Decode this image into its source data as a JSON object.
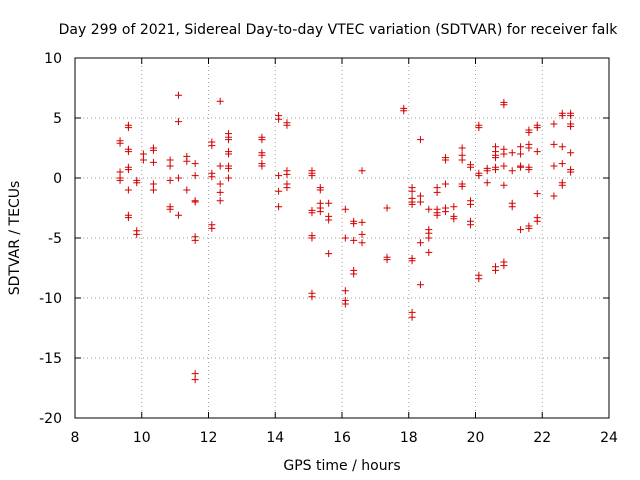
{
  "chart_data": {
    "type": "scatter",
    "title": "Day 299 of 2021, Sidereal Day-to-day VTEC variation (SDTVAR) for receiver falk",
    "xlabel": "GPS time / hours",
    "ylabel": "SDTVAR / TECUs",
    "xlim": [
      8,
      24
    ],
    "ylim": [
      -20,
      10
    ],
    "xticks": [
      "8",
      "10",
      "12",
      "14",
      "16",
      "18",
      "20",
      "22",
      "24"
    ],
    "yticks": [
      "-20",
      "-15",
      "-10",
      "-5",
      "0",
      "5",
      "10"
    ],
    "grid": true,
    "marker": "plus",
    "color": "#d40000",
    "series": [
      {
        "name": "SDTVAR",
        "points": [
          [
            9.35,
            3.1
          ],
          [
            9.35,
            2.9
          ],
          [
            9.35,
            0.5
          ],
          [
            9.35,
            0.0
          ],
          [
            9.35,
            -0.2
          ],
          [
            9.6,
            4.4
          ],
          [
            9.6,
            4.2
          ],
          [
            9.6,
            2.4
          ],
          [
            9.6,
            2.2
          ],
          [
            9.6,
            0.9
          ],
          [
            9.6,
            0.7
          ],
          [
            9.6,
            -1.0
          ],
          [
            9.6,
            -3.1
          ],
          [
            9.6,
            -3.3
          ],
          [
            9.85,
            -0.2
          ],
          [
            9.85,
            -0.4
          ],
          [
            9.85,
            -4.4
          ],
          [
            9.85,
            -4.7
          ],
          [
            10.05,
            2.0
          ],
          [
            10.05,
            1.5
          ],
          [
            10.35,
            2.5
          ],
          [
            10.35,
            2.3
          ],
          [
            10.35,
            1.3
          ],
          [
            10.35,
            -0.5
          ],
          [
            10.35,
            -1.0
          ],
          [
            10.85,
            1.5
          ],
          [
            10.85,
            1.0
          ],
          [
            10.85,
            -0.2
          ],
          [
            10.85,
            -2.4
          ],
          [
            10.85,
            -2.6
          ],
          [
            11.1,
            6.9
          ],
          [
            11.1,
            4.7
          ],
          [
            11.1,
            0.0
          ],
          [
            11.1,
            -3.1
          ],
          [
            11.35,
            1.8
          ],
          [
            11.35,
            1.4
          ],
          [
            11.35,
            -1.0
          ],
          [
            11.6,
            1.2
          ],
          [
            11.6,
            0.2
          ],
          [
            11.6,
            -1.9
          ],
          [
            11.6,
            -2.0
          ],
          [
            11.6,
            -4.9
          ],
          [
            11.6,
            -5.2
          ],
          [
            11.6,
            -16.3
          ],
          [
            11.6,
            -16.8
          ],
          [
            12.1,
            3.0
          ],
          [
            12.1,
            2.7
          ],
          [
            12.1,
            0.4
          ],
          [
            12.1,
            0.1
          ],
          [
            12.1,
            -3.9
          ],
          [
            12.1,
            -4.2
          ],
          [
            12.35,
            6.4
          ],
          [
            12.35,
            1.0
          ],
          [
            12.35,
            -0.5
          ],
          [
            12.35,
            -1.2
          ],
          [
            12.35,
            -1.9
          ],
          [
            12.6,
            3.7
          ],
          [
            12.6,
            3.4
          ],
          [
            12.6,
            3.2
          ],
          [
            12.6,
            2.2
          ],
          [
            12.6,
            2.0
          ],
          [
            12.6,
            1.0
          ],
          [
            12.6,
            0.8
          ],
          [
            12.6,
            0.0
          ],
          [
            13.6,
            3.4
          ],
          [
            13.6,
            3.2
          ],
          [
            13.6,
            2.1
          ],
          [
            13.6,
            1.9
          ],
          [
            13.6,
            1.2
          ],
          [
            13.6,
            1.0
          ],
          [
            14.1,
            5.2
          ],
          [
            14.1,
            4.9
          ],
          [
            14.1,
            0.2
          ],
          [
            14.1,
            -1.1
          ],
          [
            14.1,
            -2.4
          ],
          [
            14.35,
            4.6
          ],
          [
            14.35,
            4.4
          ],
          [
            14.35,
            0.6
          ],
          [
            14.35,
            0.3
          ],
          [
            14.35,
            -0.5
          ],
          [
            14.35,
            -0.8
          ],
          [
            15.1,
            0.6
          ],
          [
            15.1,
            0.4
          ],
          [
            15.1,
            0.2
          ],
          [
            15.1,
            -2.7
          ],
          [
            15.1,
            -2.9
          ],
          [
            15.1,
            -4.8
          ],
          [
            15.1,
            -5.0
          ],
          [
            15.1,
            -9.6
          ],
          [
            15.1,
            -9.9
          ],
          [
            15.35,
            -0.8
          ],
          [
            15.35,
            -1.0
          ],
          [
            15.35,
            -2.1
          ],
          [
            15.35,
            -2.5
          ],
          [
            15.35,
            -2.8
          ],
          [
            15.6,
            -2.1
          ],
          [
            15.6,
            -3.2
          ],
          [
            15.6,
            -3.5
          ],
          [
            15.6,
            -6.3
          ],
          [
            16.1,
            -2.6
          ],
          [
            16.1,
            -5.0
          ],
          [
            16.1,
            -9.4
          ],
          [
            16.1,
            -10.2
          ],
          [
            16.1,
            -10.5
          ],
          [
            16.35,
            -3.6
          ],
          [
            16.35,
            -3.8
          ],
          [
            16.35,
            -5.2
          ],
          [
            16.35,
            -7.7
          ],
          [
            16.35,
            -8.0
          ],
          [
            16.6,
            0.6
          ],
          [
            16.6,
            -3.7
          ],
          [
            16.6,
            -4.7
          ],
          [
            16.6,
            -5.4
          ],
          [
            17.35,
            -2.5
          ],
          [
            17.35,
            -6.6
          ],
          [
            17.35,
            -6.8
          ],
          [
            17.85,
            5.8
          ],
          [
            17.85,
            5.6
          ],
          [
            18.1,
            -0.8
          ],
          [
            18.1,
            -1.1
          ],
          [
            18.1,
            -1.7
          ],
          [
            18.1,
            -2.0
          ],
          [
            18.1,
            -2.2
          ],
          [
            18.1,
            -6.7
          ],
          [
            18.1,
            -6.9
          ],
          [
            18.1,
            -11.2
          ],
          [
            18.1,
            -11.6
          ],
          [
            18.35,
            3.2
          ],
          [
            18.35,
            -1.5
          ],
          [
            18.35,
            -2.0
          ],
          [
            18.35,
            -5.4
          ],
          [
            18.35,
            -8.9
          ],
          [
            18.6,
            -2.6
          ],
          [
            18.6,
            -4.3
          ],
          [
            18.6,
            -4.6
          ],
          [
            18.6,
            -5.0
          ],
          [
            18.6,
            -6.2
          ],
          [
            18.85,
            -0.8
          ],
          [
            18.85,
            -1.2
          ],
          [
            18.85,
            -2.6
          ],
          [
            18.85,
            -2.9
          ],
          [
            18.85,
            -3.1
          ],
          [
            19.1,
            1.7
          ],
          [
            19.1,
            1.5
          ],
          [
            19.1,
            -0.5
          ],
          [
            19.1,
            -2.5
          ],
          [
            19.1,
            -2.8
          ],
          [
            19.35,
            -2.4
          ],
          [
            19.35,
            -3.2
          ],
          [
            19.35,
            -3.4
          ],
          [
            19.6,
            2.5
          ],
          [
            19.6,
            1.9
          ],
          [
            19.6,
            1.5
          ],
          [
            19.6,
            -0.5
          ],
          [
            19.6,
            -0.7
          ],
          [
            19.85,
            1.1
          ],
          [
            19.85,
            0.9
          ],
          [
            19.85,
            -1.9
          ],
          [
            19.85,
            -2.2
          ],
          [
            19.85,
            -3.6
          ],
          [
            19.85,
            -3.9
          ],
          [
            20.1,
            4.4
          ],
          [
            20.1,
            4.2
          ],
          [
            20.1,
            0.4
          ],
          [
            20.1,
            0.2
          ],
          [
            20.1,
            -8.1
          ],
          [
            20.1,
            -8.4
          ],
          [
            20.35,
            0.8
          ],
          [
            20.35,
            0.6
          ],
          [
            20.35,
            -0.4
          ],
          [
            20.6,
            2.6
          ],
          [
            20.6,
            2.2
          ],
          [
            20.6,
            1.9
          ],
          [
            20.6,
            1.7
          ],
          [
            20.6,
            0.9
          ],
          [
            20.6,
            0.7
          ],
          [
            20.6,
            -7.4
          ],
          [
            20.6,
            -7.7
          ],
          [
            20.85,
            6.3
          ],
          [
            20.85,
            6.1
          ],
          [
            20.85,
            2.4
          ],
          [
            20.85,
            2.0
          ],
          [
            20.85,
            1.0
          ],
          [
            20.85,
            -0.6
          ],
          [
            20.85,
            -7.0
          ],
          [
            20.85,
            -7.3
          ],
          [
            21.1,
            2.1
          ],
          [
            21.1,
            0.6
          ],
          [
            21.1,
            -2.1
          ],
          [
            21.1,
            -2.4
          ],
          [
            21.35,
            2.6
          ],
          [
            21.35,
            2.0
          ],
          [
            21.35,
            1.0
          ],
          [
            21.35,
            0.9
          ],
          [
            21.35,
            -4.3
          ],
          [
            21.6,
            4.0
          ],
          [
            21.6,
            3.8
          ],
          [
            21.6,
            2.8
          ],
          [
            21.6,
            2.5
          ],
          [
            21.6,
            0.9
          ],
          [
            21.6,
            0.7
          ],
          [
            21.6,
            -4.0
          ],
          [
            21.6,
            -4.2
          ],
          [
            21.85,
            4.4
          ],
          [
            21.85,
            4.2
          ],
          [
            21.85,
            2.2
          ],
          [
            21.85,
            -1.3
          ],
          [
            21.85,
            -3.3
          ],
          [
            21.85,
            -3.6
          ],
          [
            22.35,
            4.5
          ],
          [
            22.35,
            2.8
          ],
          [
            22.35,
            1.0
          ],
          [
            22.35,
            -1.5
          ],
          [
            22.6,
            5.4
          ],
          [
            22.6,
            5.2
          ],
          [
            22.6,
            2.6
          ],
          [
            22.6,
            1.2
          ],
          [
            22.6,
            -0.4
          ],
          [
            22.6,
            -0.6
          ],
          [
            22.85,
            5.4
          ],
          [
            22.85,
            5.2
          ],
          [
            22.85,
            4.5
          ],
          [
            22.85,
            4.3
          ],
          [
            22.85,
            2.1
          ],
          [
            22.85,
            0.7
          ],
          [
            22.85,
            0.5
          ]
        ]
      }
    ]
  }
}
